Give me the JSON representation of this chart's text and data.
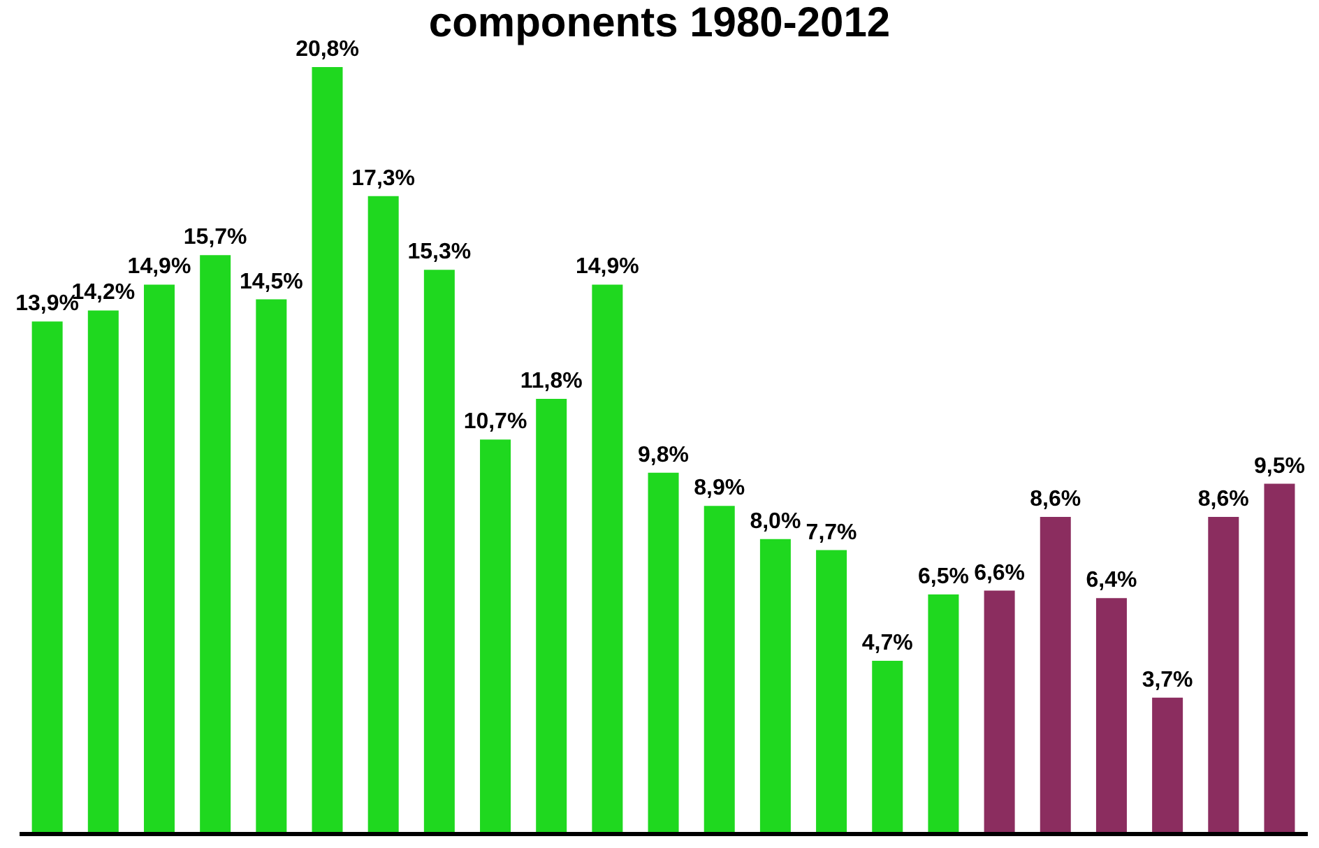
{
  "chart_data": {
    "type": "bar",
    "title": "components 1980-2012",
    "categories": [
      null,
      null,
      null,
      null,
      null,
      null,
      null,
      null,
      null,
      null,
      null,
      null,
      null,
      null,
      null,
      null,
      null,
      null,
      null,
      null,
      null,
      null,
      null
    ],
    "values": [
      13.9,
      14.2,
      14.9,
      15.7,
      14.5,
      20.8,
      17.3,
      15.3,
      10.7,
      11.8,
      14.9,
      9.8,
      8.9,
      8.0,
      7.7,
      4.7,
      6.5,
      6.6,
      8.6,
      6.4,
      3.7,
      8.6,
      9.5
    ],
    "value_labels": [
      "13,9%",
      "14,2%",
      "14,9%",
      "15,7%",
      "14,5%",
      "20,8%",
      "17,3%",
      "15,3%",
      "10,7%",
      "11,8%",
      "14,9%",
      "9,8%",
      "8,9%",
      "8,0%",
      "7,7%",
      "4,7%",
      "6,5%",
      "6,6%",
      "8,6%",
      "6,4%",
      "3,7%",
      "8,6%",
      "9,5%"
    ],
    "colors": [
      "#1fd81f",
      "#1fd81f",
      "#1fd81f",
      "#1fd81f",
      "#1fd81f",
      "#1fd81f",
      "#1fd81f",
      "#1fd81f",
      "#1fd81f",
      "#1fd81f",
      "#1fd81f",
      "#1fd81f",
      "#1fd81f",
      "#1fd81f",
      "#1fd81f",
      "#1fd81f",
      "#1fd81f",
      "#8b2d5f",
      "#8b2d5f",
      "#8b2d5f",
      "#8b2d5f",
      "#8b2d5f",
      "#8b2d5f"
    ]
  }
}
